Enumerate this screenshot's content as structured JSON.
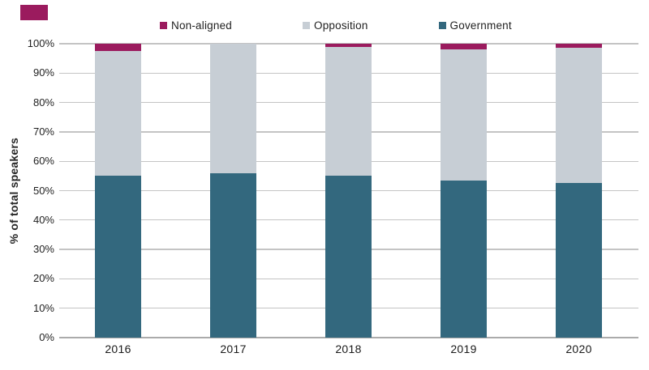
{
  "brand_mark": {
    "color": "#9B1B5E"
  },
  "chart_data": {
    "type": "bar",
    "stacked": true,
    "title": "",
    "xlabel": "",
    "ylabel": "% of total speakers",
    "ylim": [
      0,
      100
    ],
    "ytick_step": 10,
    "y_ticks": [
      "0%",
      "10%",
      "20%",
      "30%",
      "40%",
      "50%",
      "60%",
      "70%",
      "80%",
      "90%",
      "100%"
    ],
    "grid": true,
    "legend_position": "top",
    "categories": [
      "2016",
      "2017",
      "2018",
      "2019",
      "2020"
    ],
    "series": [
      {
        "name": "Non-aligned",
        "color": "#9B1B5E",
        "values": [
          2.5,
          0,
          1,
          2,
          1.5
        ]
      },
      {
        "name": "Opposition",
        "color": "#C7CED5",
        "values": [
          42.5,
          44,
          44,
          44.5,
          46
        ]
      },
      {
        "name": "Government",
        "color": "#33687E",
        "values": [
          55,
          56,
          55,
          53.5,
          52.5
        ]
      }
    ],
    "stack_order_bottom_to_top": [
      "Government",
      "Opposition",
      "Non-aligned"
    ]
  },
  "style": {
    "gridline_color": "#C4C4C4",
    "baseline_color": "#ABABAB",
    "text_color": "#1F1F1F"
  }
}
